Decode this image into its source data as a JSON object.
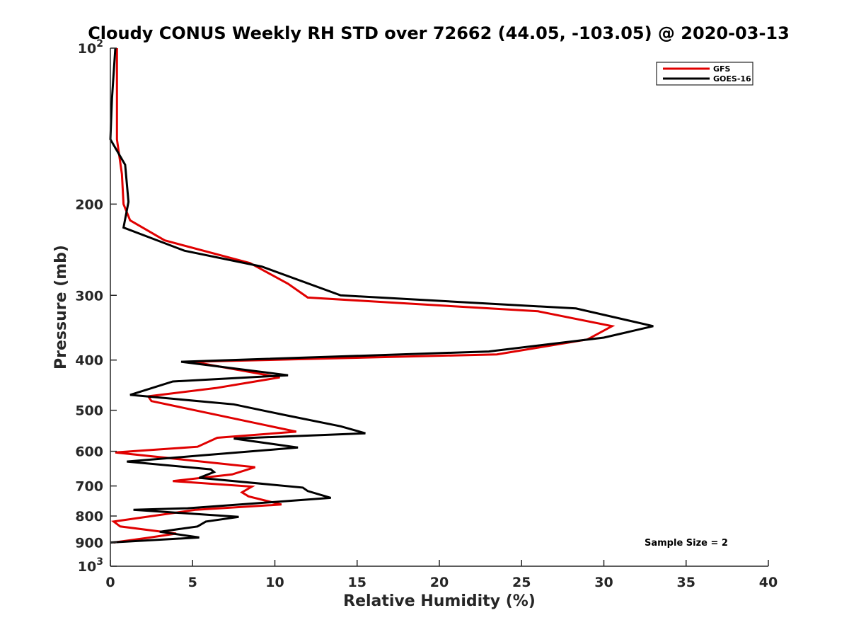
{
  "chart_data": {
    "type": "line",
    "title": "Cloudy CONUS Weekly RH STD over 72662 (44.05, -103.05) @ 2020-03-13",
    "xlabel": "Relative Humidity (%)",
    "ylabel": "Pressure (mb)",
    "xlim": [
      0,
      40
    ],
    "ylim": [
      100,
      1000
    ],
    "yscale": "log",
    "y_reversed": true,
    "grid": false,
    "legend_position": "top-right",
    "x_ticks": [
      0,
      5,
      10,
      15,
      20,
      25,
      30,
      35,
      40
    ],
    "y_ticks": [
      {
        "value": 100,
        "base": "10",
        "exp": "2"
      },
      {
        "value": 200,
        "label": "200"
      },
      {
        "value": 300,
        "label": "300"
      },
      {
        "value": 400,
        "label": "400"
      },
      {
        "value": 500,
        "label": "500"
      },
      {
        "value": 600,
        "label": "600"
      },
      {
        "value": 700,
        "label": "700"
      },
      {
        "value": 800,
        "label": "800"
      },
      {
        "value": 900,
        "label": "900"
      },
      {
        "value": 1000,
        "base": "10",
        "exp": "3"
      }
    ],
    "annotation": "Sample Size = 2",
    "series": [
      {
        "name": "GFS",
        "color": "#e00000",
        "points": [
          [
            0.4,
            100
          ],
          [
            0.4,
            125
          ],
          [
            0.4,
            150
          ],
          [
            0.7,
            175
          ],
          [
            0.8,
            200
          ],
          [
            1.2,
            215
          ],
          [
            3.3,
            235
          ],
          [
            8.5,
            260
          ],
          [
            10.8,
            285
          ],
          [
            12.0,
            303
          ],
          [
            26.0,
            322
          ],
          [
            30.5,
            344
          ],
          [
            29.0,
            365
          ],
          [
            23.5,
            390
          ],
          [
            5.0,
            403
          ],
          [
            10.3,
            432
          ],
          [
            6.4,
            453
          ],
          [
            2.3,
            470
          ],
          [
            2.5,
            480
          ],
          [
            11.3,
            550
          ],
          [
            6.5,
            565
          ],
          [
            5.3,
            588
          ],
          [
            0.3,
            603
          ],
          [
            8.8,
            644
          ],
          [
            7.4,
            665
          ],
          [
            3.8,
            685
          ],
          [
            8.6,
            702
          ],
          [
            8.0,
            720
          ],
          [
            8.4,
            733
          ],
          [
            10.4,
            760
          ],
          [
            5.2,
            778
          ],
          [
            0.2,
            820
          ],
          [
            0.6,
            838
          ],
          [
            4.0,
            865
          ],
          [
            2.2,
            882
          ],
          [
            0.2,
            900
          ]
        ]
      },
      {
        "name": "GOES-16",
        "color": "#000000",
        "points": [
          [
            0.3,
            100
          ],
          [
            0.1,
            125
          ],
          [
            0.0,
            150
          ],
          [
            0.9,
            168
          ],
          [
            1.1,
            198
          ],
          [
            0.8,
            222
          ],
          [
            4.5,
            246
          ],
          [
            9.2,
            264
          ],
          [
            14.0,
            300
          ],
          [
            28.3,
            318
          ],
          [
            33.0,
            344
          ],
          [
            30.0,
            362
          ],
          [
            23.0,
            385
          ],
          [
            4.3,
            403
          ],
          [
            10.8,
            428
          ],
          [
            3.8,
            440
          ],
          [
            1.2,
            467
          ],
          [
            7.5,
            487
          ],
          [
            10.5,
            510
          ],
          [
            14.0,
            537
          ],
          [
            15.5,
            554
          ],
          [
            7.5,
            567
          ],
          [
            11.4,
            590
          ],
          [
            5.3,
            612
          ],
          [
            1.0,
            628
          ],
          [
            6.1,
            650
          ],
          [
            6.3,
            658
          ],
          [
            5.4,
            675
          ],
          [
            11.7,
            705
          ],
          [
            12.0,
            716
          ],
          [
            13.4,
            738
          ],
          [
            4.7,
            773
          ],
          [
            1.4,
            778
          ],
          [
            7.8,
            803
          ],
          [
            5.8,
            820
          ],
          [
            5.3,
            838
          ],
          [
            3.0,
            858
          ],
          [
            5.4,
            880
          ],
          [
            0.0,
            900
          ]
        ]
      }
    ]
  }
}
